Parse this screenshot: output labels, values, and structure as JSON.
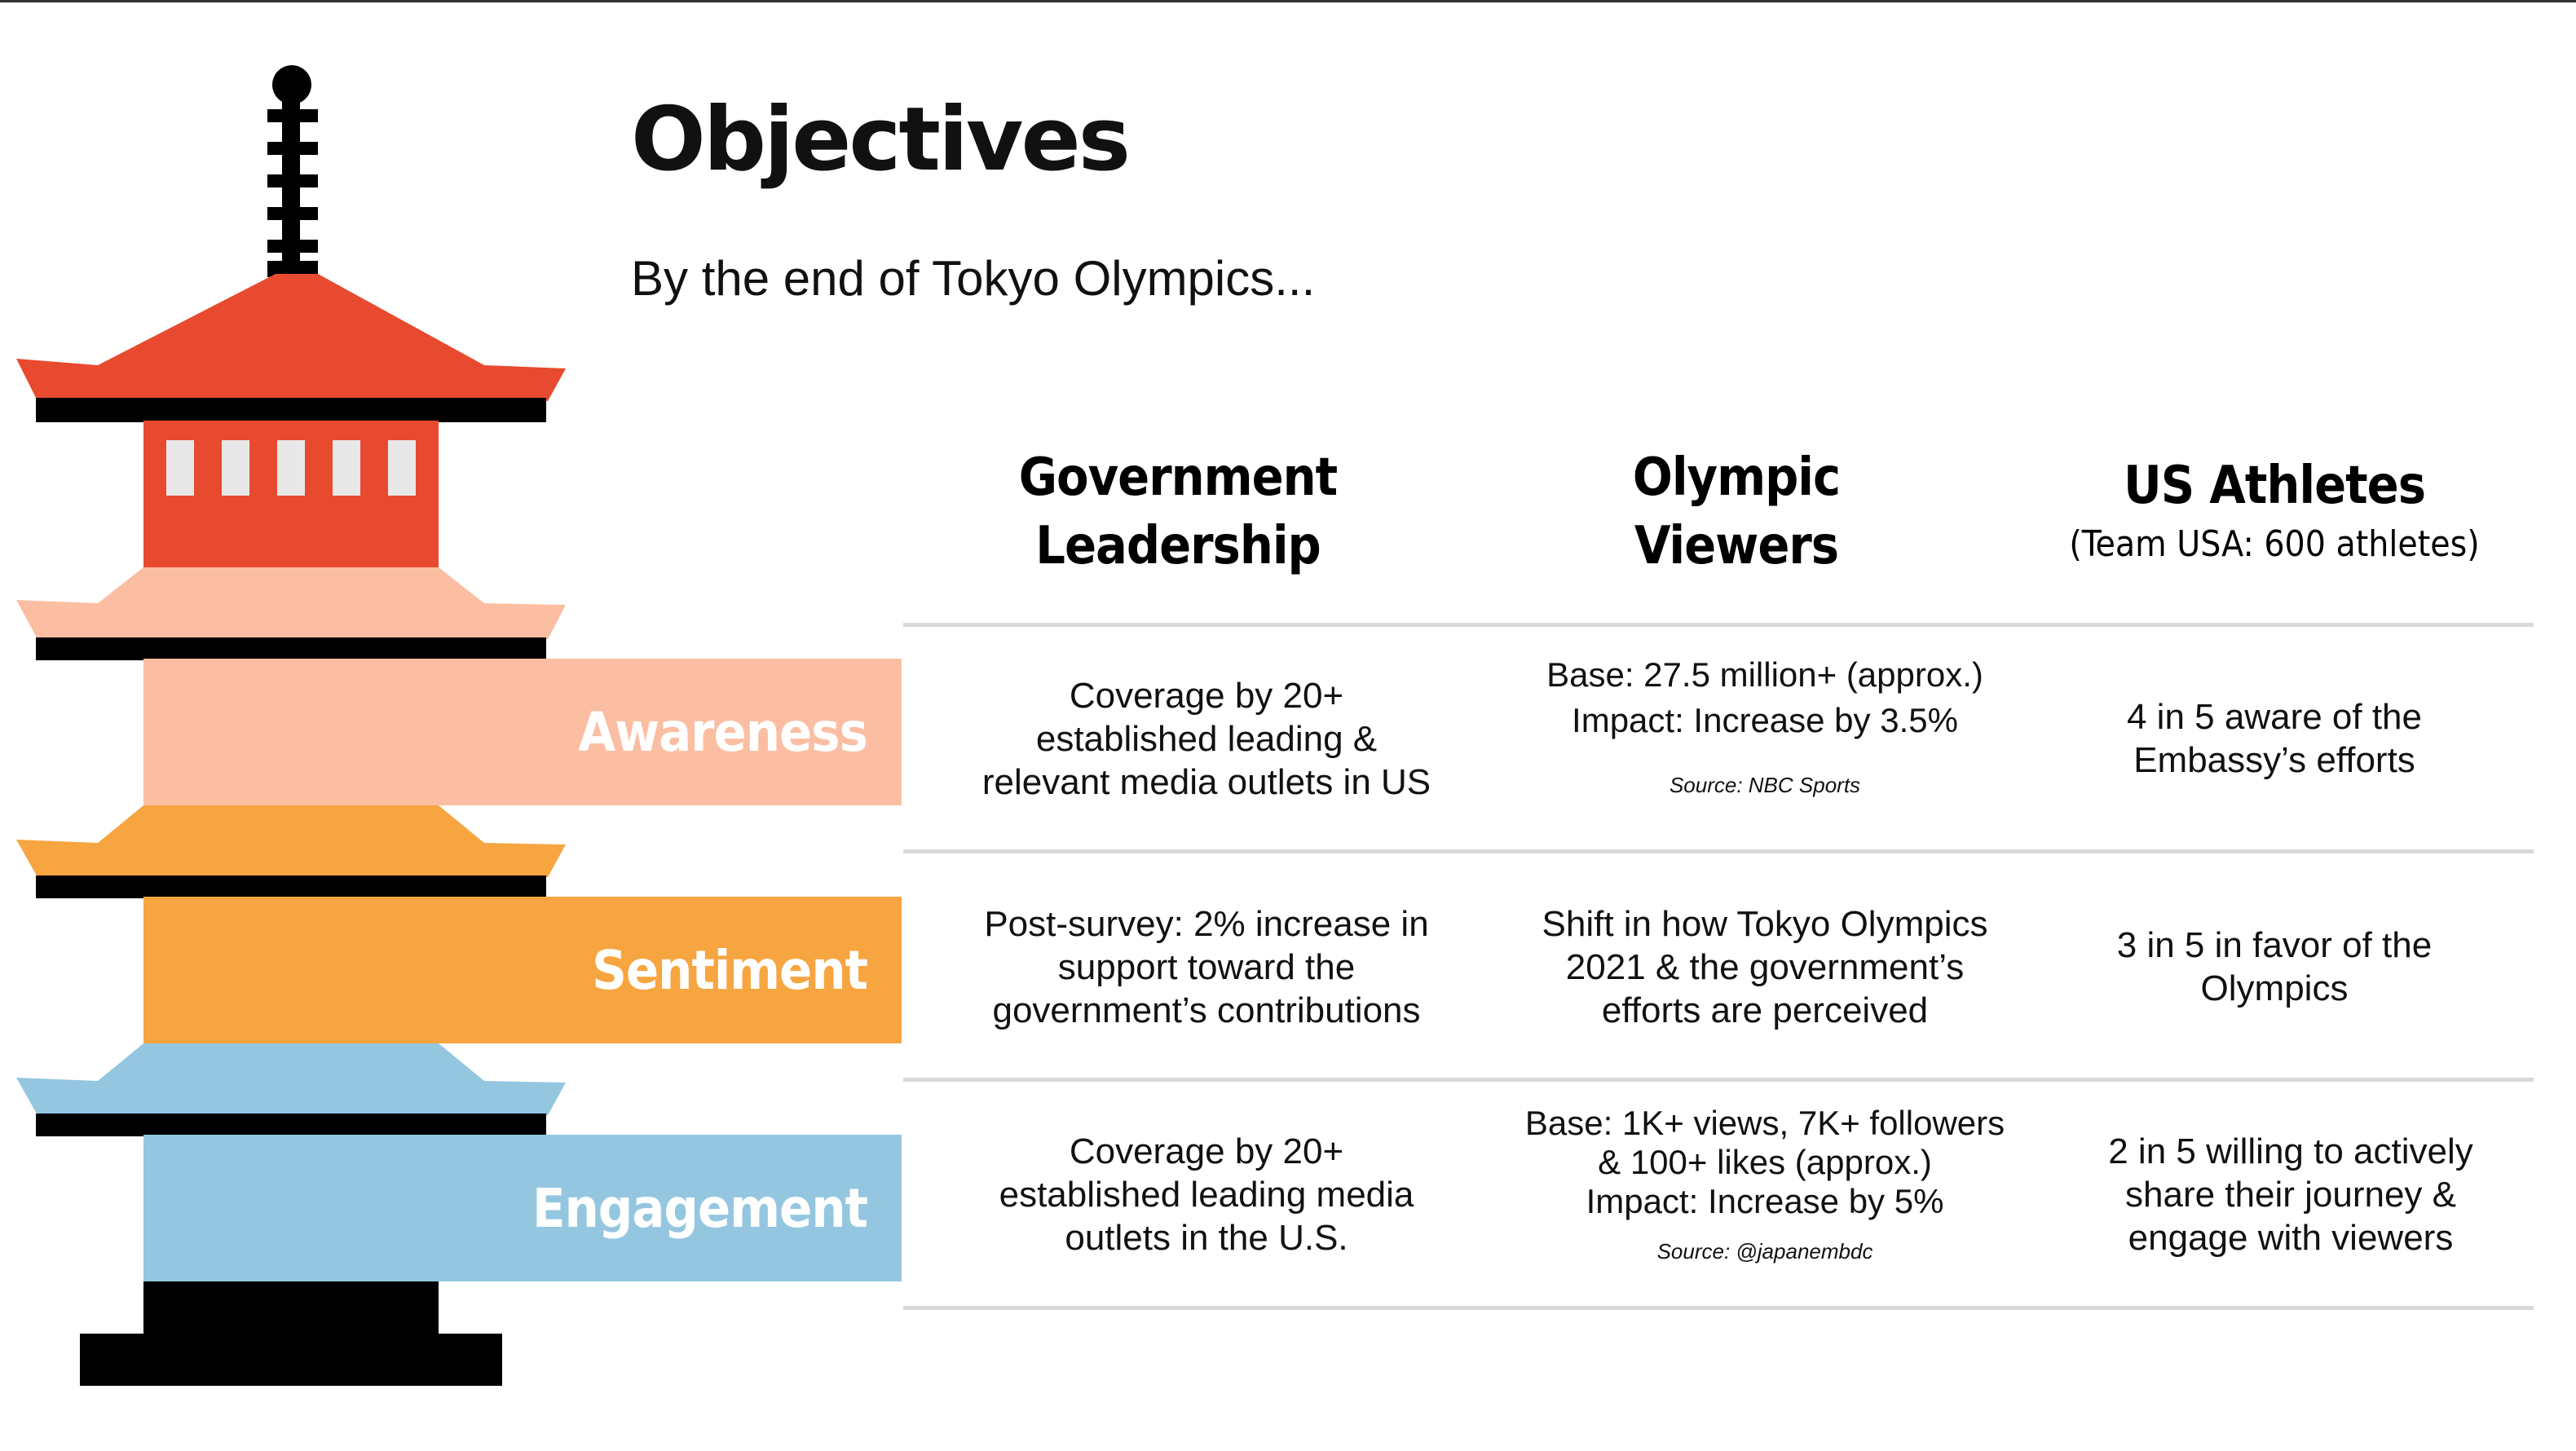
{
  "title": "Objectives",
  "subtitle": "By the end of Tokyo Olympics...",
  "colors": {
    "roof_red": "#E84A2F",
    "awareness": "#FBBEA2",
    "sentiment": "#F7A540",
    "engagement": "#94C6E0",
    "window": "#E8E8E8",
    "rule": "#D9D9D9"
  },
  "stages": [
    {
      "label": "Awareness"
    },
    {
      "label": "Sentiment"
    },
    {
      "label": "Engagement"
    }
  ],
  "columns": [
    {
      "line1": "Government",
      "line2": "Leadership"
    },
    {
      "line1": "Olympic",
      "line2": "Viewers"
    },
    {
      "line1": "US Athletes",
      "sub": "(Team USA: 600 athletes)"
    }
  ],
  "rows": [
    {
      "government": [
        "Coverage by 20+",
        "established leading &",
        "relevant media outlets in US"
      ],
      "viewers": {
        "lines": [
          "Base: 27.5 million+ (approx.)",
          "Impact: Increase by 3.5%"
        ],
        "source": "Source: NBC Sports"
      },
      "athletes": [
        "4 in 5 aware of the",
        "Embassy’s efforts"
      ]
    },
    {
      "government": [
        "Post-survey: 2% increase in",
        "support toward the",
        "government’s contributions"
      ],
      "viewers": {
        "lines": [
          "Shift in how Tokyo Olympics",
          "2021 &  the government’s",
          "efforts are perceived"
        ]
      },
      "athletes": [
        "3 in 5 in favor of the",
        "Olympics"
      ]
    },
    {
      "government": [
        "Coverage by 20+",
        "established leading media",
        "outlets in the U.S."
      ],
      "viewers": {
        "lines": [
          "Base: 1K+ views, 7K+ followers",
          "& 100+ likes (approx.)",
          "Impact: Increase by 5%"
        ],
        "source": "Source: @japanembdc"
      },
      "athletes": [
        "2 in 5 willing to actively",
        "share their journey &",
        "engage with viewers"
      ]
    }
  ]
}
